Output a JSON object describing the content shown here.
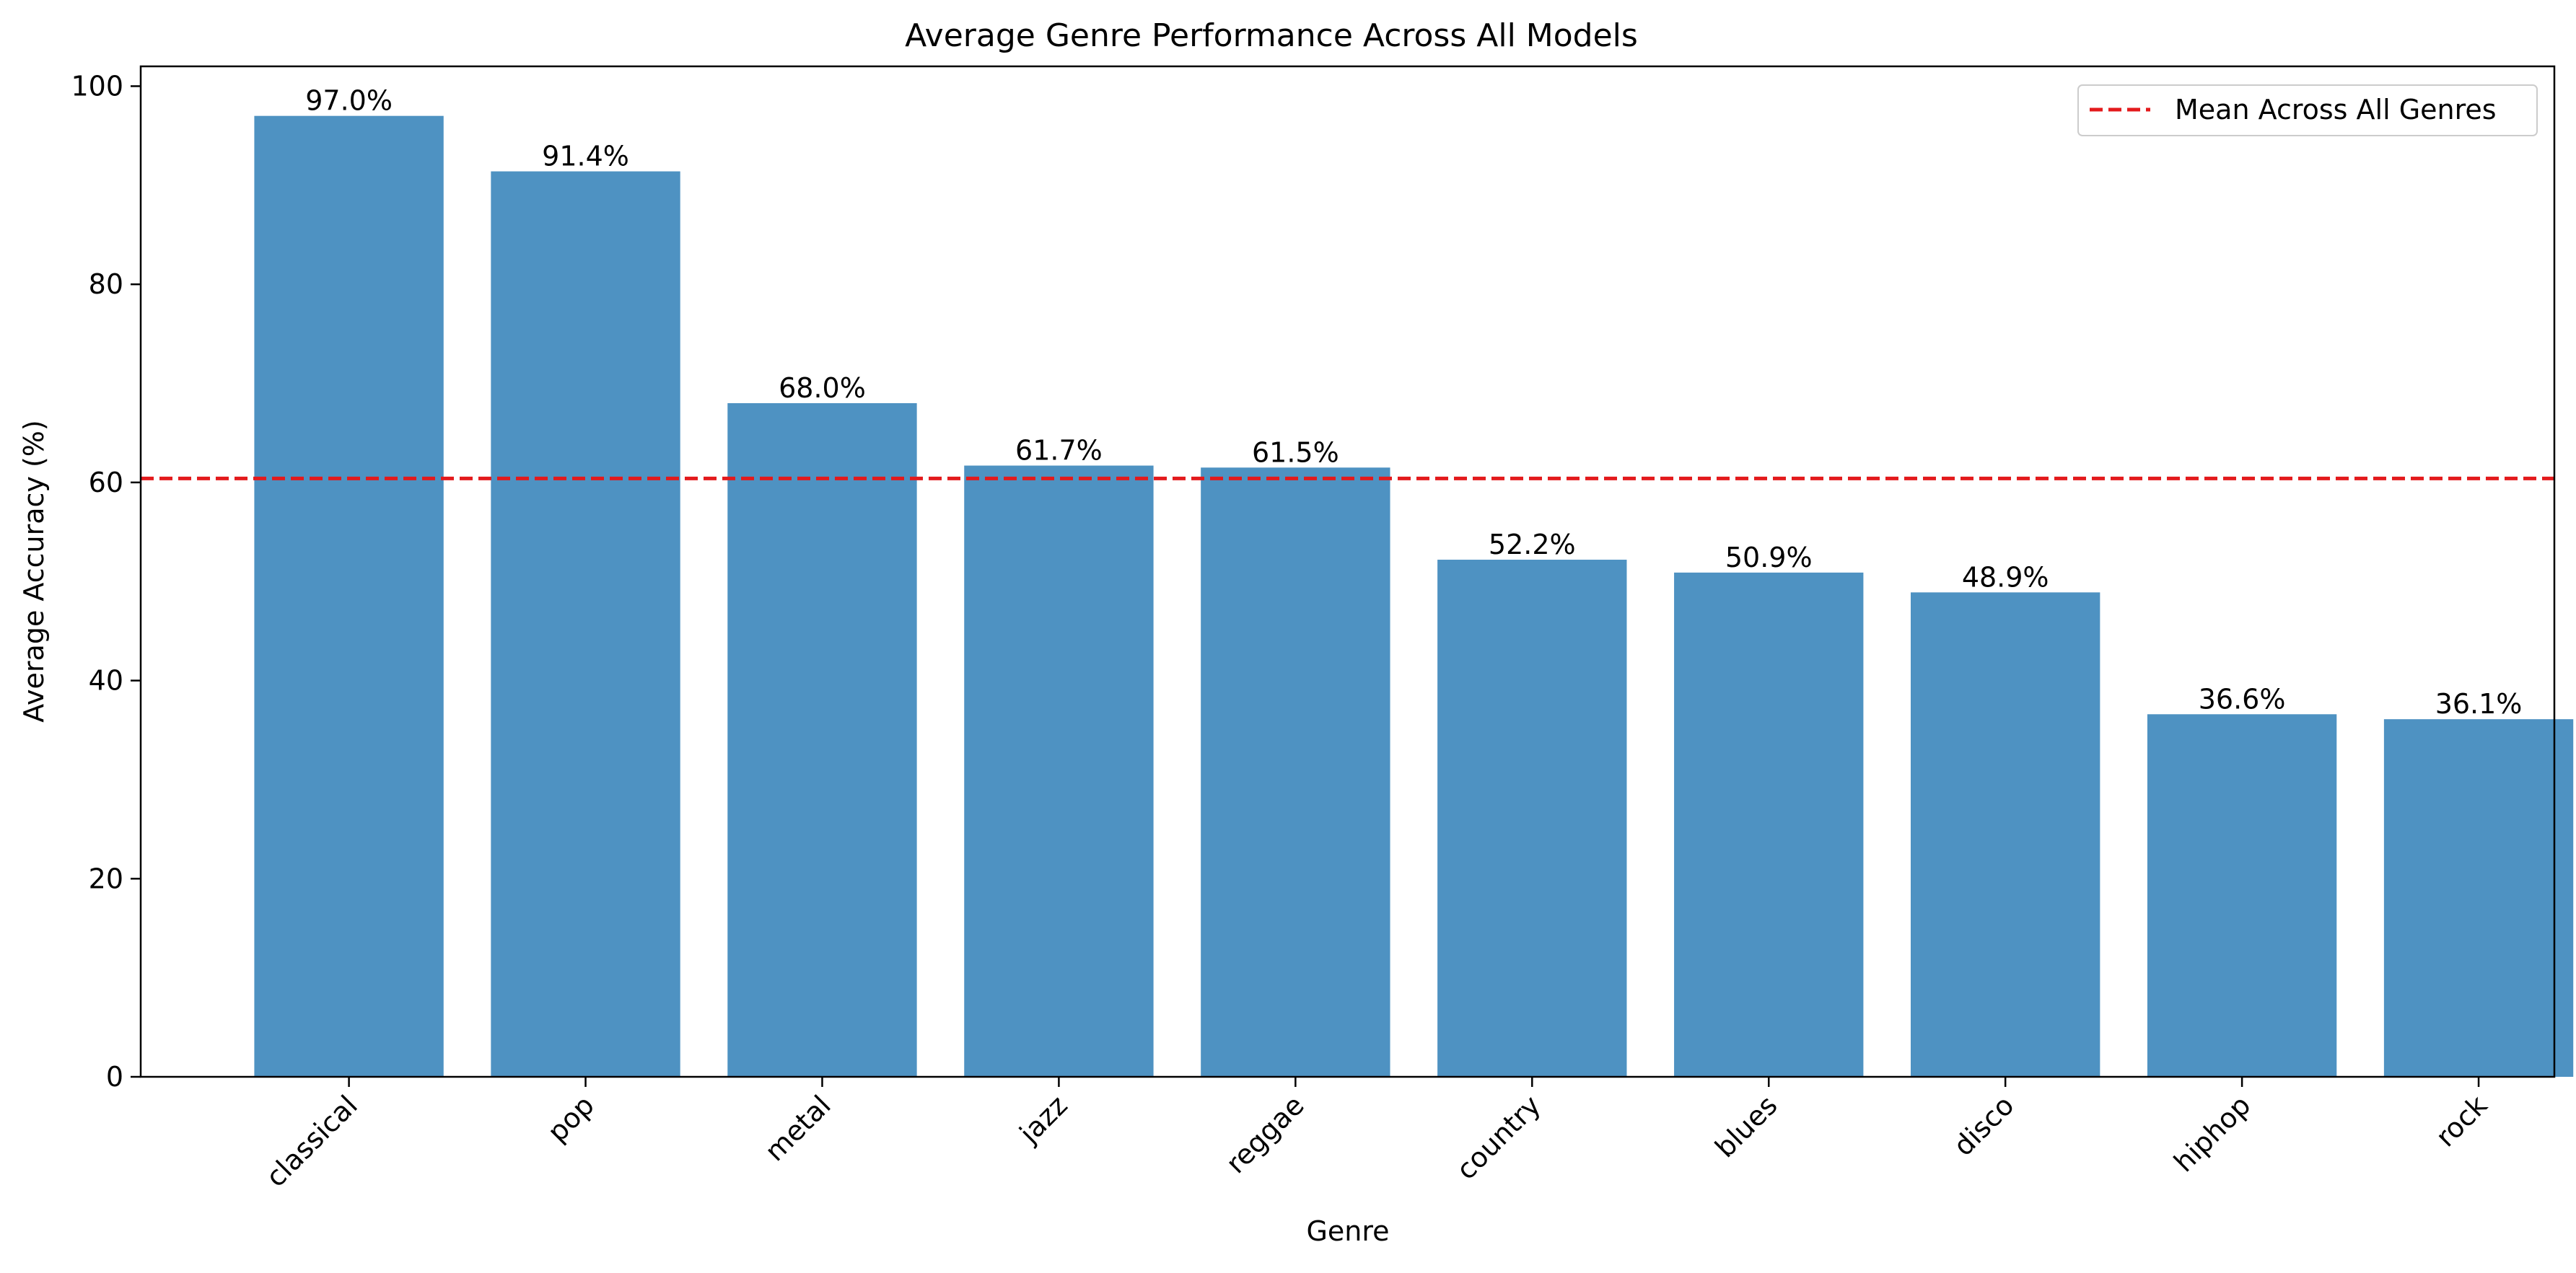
{
  "chart_data": {
    "type": "bar",
    "title": "Average Genre Performance Across All Models",
    "xlabel": "Genre",
    "ylabel": "Average Accuracy (%)",
    "categories": [
      "classical",
      "pop",
      "metal",
      "jazz",
      "reggae",
      "country",
      "blues",
      "disco",
      "hiphop",
      "rock"
    ],
    "values": [
      97.0,
      91.4,
      68.0,
      61.7,
      61.5,
      52.2,
      50.9,
      48.9,
      36.6,
      36.1
    ],
    "data_labels": [
      "97.0%",
      "91.4%",
      "68.0%",
      "61.7%",
      "61.5%",
      "52.2%",
      "50.9%",
      "48.9%",
      "36.6%",
      "36.1%"
    ],
    "ylim": [
      0,
      102
    ],
    "yticks": [
      0,
      20,
      40,
      60,
      80,
      100
    ],
    "mean_line": {
      "value": 60.4,
      "label": "Mean Across All Genres",
      "color": "#e31a1c",
      "style": "dashed"
    },
    "bar_color": "#4e92c2",
    "grid": false,
    "legend": "top-right",
    "xtick_rotation": -45
  }
}
